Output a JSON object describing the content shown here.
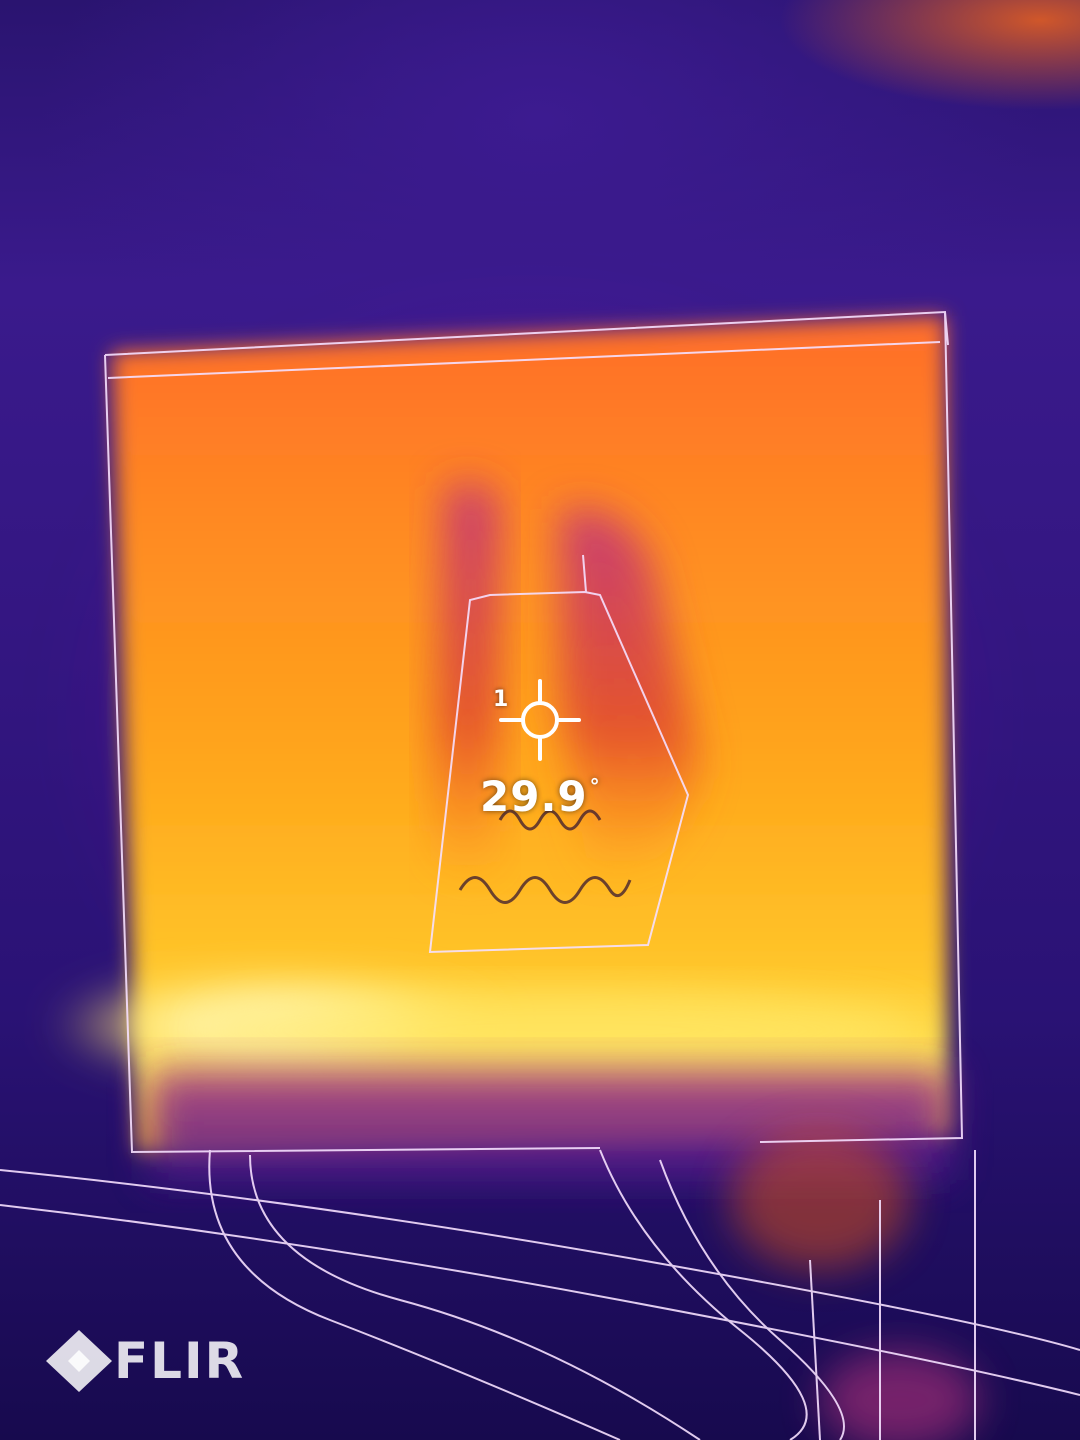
{
  "spot": {
    "index": "1",
    "temperature": "29.9",
    "unit": "°"
  },
  "brand": {
    "logo_text": "FLIR",
    "logo_icon": "flir-diamond-icon"
  },
  "palette": {
    "background_cold": "#2a1470",
    "warm_orange": "#ff7e1e",
    "hot_yellow": "#ffd43a",
    "hottest": "#fff6c0",
    "edge_lines": "#f2d8ff"
  }
}
